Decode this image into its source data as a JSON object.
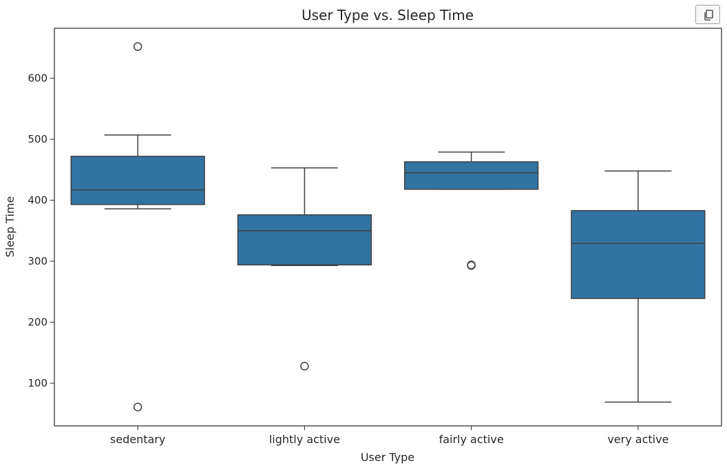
{
  "toolbar": {
    "copy_icon": "copy-icon"
  },
  "chart_data": {
    "type": "box",
    "title": "User Type vs. Sleep Time",
    "xlabel": "User Type",
    "ylabel": "Sleep Time",
    "ylim": [
      30,
      682
    ],
    "yticks": [
      100,
      200,
      300,
      400,
      500,
      600
    ],
    "box_color": "#3274a1",
    "line_color": "#3f3f3f",
    "grid": false,
    "categories": [
      "sedentary",
      "lightly active",
      "fairly active",
      "very active"
    ],
    "boxes": [
      {
        "category": "sedentary",
        "whisker_low": 386,
        "q1": 393,
        "median": 417,
        "q3": 472,
        "whisker_high": 507,
        "outliers": [
          652,
          61
        ]
      },
      {
        "category": "lightly active",
        "whisker_low": 293,
        "q1": 294,
        "median": 350,
        "q3": 376,
        "whisker_high": 453,
        "outliers": [
          128
        ]
      },
      {
        "category": "fairly active",
        "whisker_low": 418,
        "q1": 418,
        "median": 445,
        "q3": 463,
        "whisker_high": 479,
        "outliers": [
          294,
          293
        ]
      },
      {
        "category": "very active",
        "whisker_low": 69,
        "q1": 239,
        "median": 329,
        "q3": 383,
        "whisker_high": 448,
        "outliers": []
      }
    ]
  }
}
